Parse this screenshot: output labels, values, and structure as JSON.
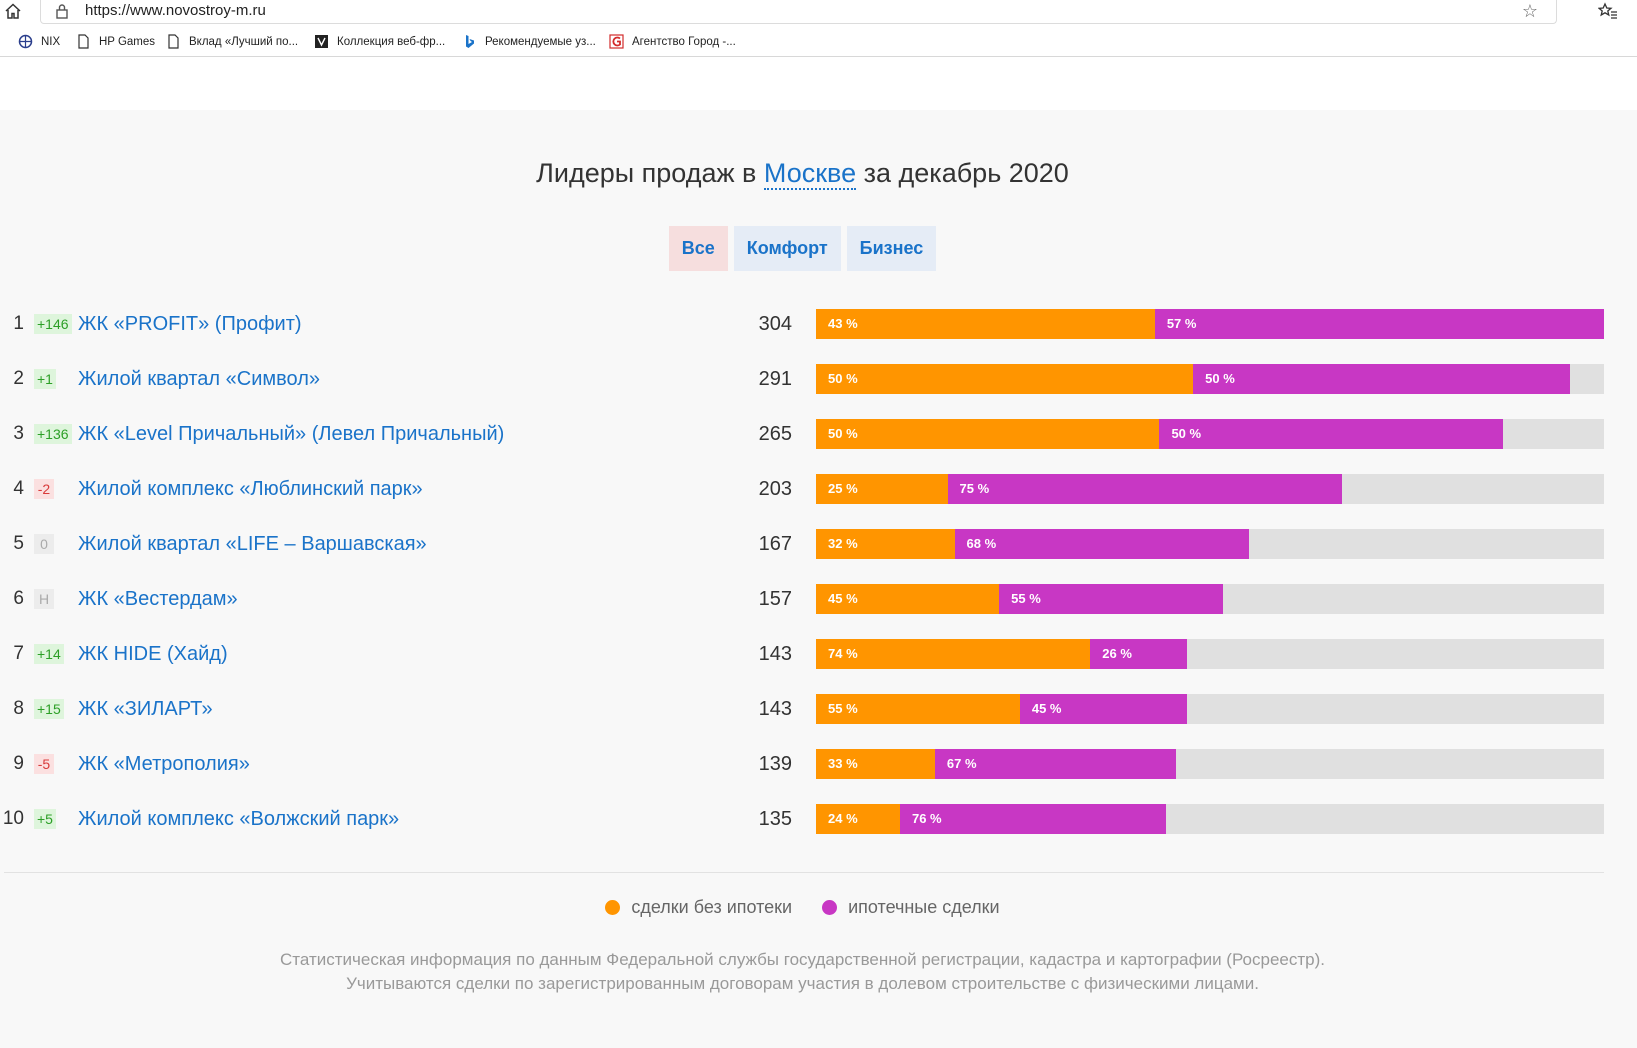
{
  "browser": {
    "url": "https://www.novostroy-m.ru",
    "bookmarks": [
      {
        "label": "NIX",
        "icon": "nix-icon"
      },
      {
        "label": "HP Games",
        "icon": "page-icon"
      },
      {
        "label": "Вклад «Лучший по...",
        "icon": "page-icon"
      },
      {
        "label": "Коллекция веб-фр...",
        "icon": "collection-icon"
      },
      {
        "label": "Рекомендуемые уз...",
        "icon": "bing-icon"
      },
      {
        "label": "Агентство Город -...",
        "icon": "gorod-icon"
      }
    ]
  },
  "heading": {
    "prefix": "Лидеры продаж в",
    "city": "Москве",
    "suffix": "за декабрь 2020"
  },
  "tabs": [
    {
      "label": "Все",
      "active": true
    },
    {
      "label": "Комфорт",
      "active": false
    },
    {
      "label": "Бизнес",
      "active": false
    }
  ],
  "leaders": [
    {
      "rank": "1",
      "delta": "+146",
      "delta_type": "up",
      "name": "ЖК «PROFIT» (Профит)",
      "total": 304,
      "cash_pct": 43,
      "mortgage_pct": 57
    },
    {
      "rank": "2",
      "delta": "+1",
      "delta_type": "up",
      "name": "Жилой квартал «Символ»",
      "total": 291,
      "cash_pct": 50,
      "mortgage_pct": 50
    },
    {
      "rank": "3",
      "delta": "+136",
      "delta_type": "up",
      "name": "ЖК «Level Причальный» (Левел Причальный)",
      "total": 265,
      "cash_pct": 50,
      "mortgage_pct": 50
    },
    {
      "rank": "4",
      "delta": "-2",
      "delta_type": "down",
      "name": "Жилой комплекс «Люблинский парк»",
      "total": 203,
      "cash_pct": 25,
      "mortgage_pct": 75
    },
    {
      "rank": "5",
      "delta": "0",
      "delta_type": "zero",
      "name": "Жилой квартал «LIFE – Варшавская»",
      "total": 167,
      "cash_pct": 32,
      "mortgage_pct": 68
    },
    {
      "rank": "6",
      "delta": "Н",
      "delta_type": "zero",
      "name": "ЖК «Вестердам»",
      "total": 157,
      "cash_pct": 45,
      "mortgage_pct": 55
    },
    {
      "rank": "7",
      "delta": "+14",
      "delta_type": "up",
      "name": "ЖК HIDE (Хайд)",
      "total": 143,
      "cash_pct": 74,
      "mortgage_pct": 26
    },
    {
      "rank": "8",
      "delta": "+15",
      "delta_type": "up",
      "name": "ЖК «ЗИЛАРТ»",
      "total": 143,
      "cash_pct": 55,
      "mortgage_pct": 45
    },
    {
      "rank": "9",
      "delta": "-5",
      "delta_type": "down",
      "name": "ЖК «Метрополия»",
      "total": 139,
      "cash_pct": 33,
      "mortgage_pct": 67
    },
    {
      "rank": "10",
      "delta": "+5",
      "delta_type": "up",
      "name": "Жилой комплекс «Волжский парк»",
      "total": 135,
      "cash_pct": 24,
      "mortgage_pct": 76
    }
  ],
  "scale_max": 304,
  "legend": {
    "cash_label": "сделки без ипотеки",
    "cash_color": "#ff9500",
    "mortgage_label": "ипотечные сделки",
    "mortgage_color": "#c837c4"
  },
  "notes": [
    "Статистическая информация по данным Федеральной службы государственной регистрации, кадастра и картографии (Росреестр).",
    "Учитываются сделки по зарегистрированным договорам участия в долевом строительстве с физическими лицами."
  ]
}
